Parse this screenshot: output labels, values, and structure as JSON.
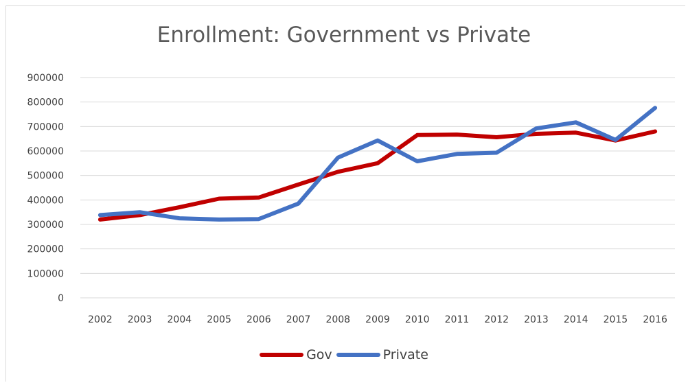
{
  "colors": {
    "gov": "#c00000",
    "private": "#4472c4",
    "grid": "#d9d9d9",
    "text": "#404040",
    "title": "#595959"
  },
  "chart_data": {
    "type": "line",
    "title": "Enrollment: Government vs Private",
    "xlabel": "",
    "ylabel": "",
    "ylim": [
      0,
      900000
    ],
    "yticks": [
      "0",
      "100000",
      "200000",
      "300000",
      "400000",
      "500000",
      "600000",
      "700000",
      "800000",
      "900000"
    ],
    "categories": [
      "2002",
      "2003",
      "2004",
      "2005",
      "2006",
      "2007",
      "2008",
      "2009",
      "2010",
      "2011",
      "2012",
      "2013",
      "2014",
      "2015",
      "2016"
    ],
    "grid": true,
    "legend": "bottom",
    "series": [
      {
        "name": "Gov",
        "color": "#c00000",
        "values": [
          320000,
          338000,
          370000,
          405000,
          410000,
          463000,
          515000,
          550000,
          665000,
          667000,
          656000,
          670000,
          675000,
          643000,
          680000
        ]
      },
      {
        "name": "Private",
        "color": "#4472c4",
        "values": [
          338000,
          350000,
          325000,
          320000,
          322000,
          385000,
          573000,
          643000,
          558000,
          588000,
          593000,
          692000,
          717000,
          645000,
          776000
        ]
      }
    ]
  }
}
